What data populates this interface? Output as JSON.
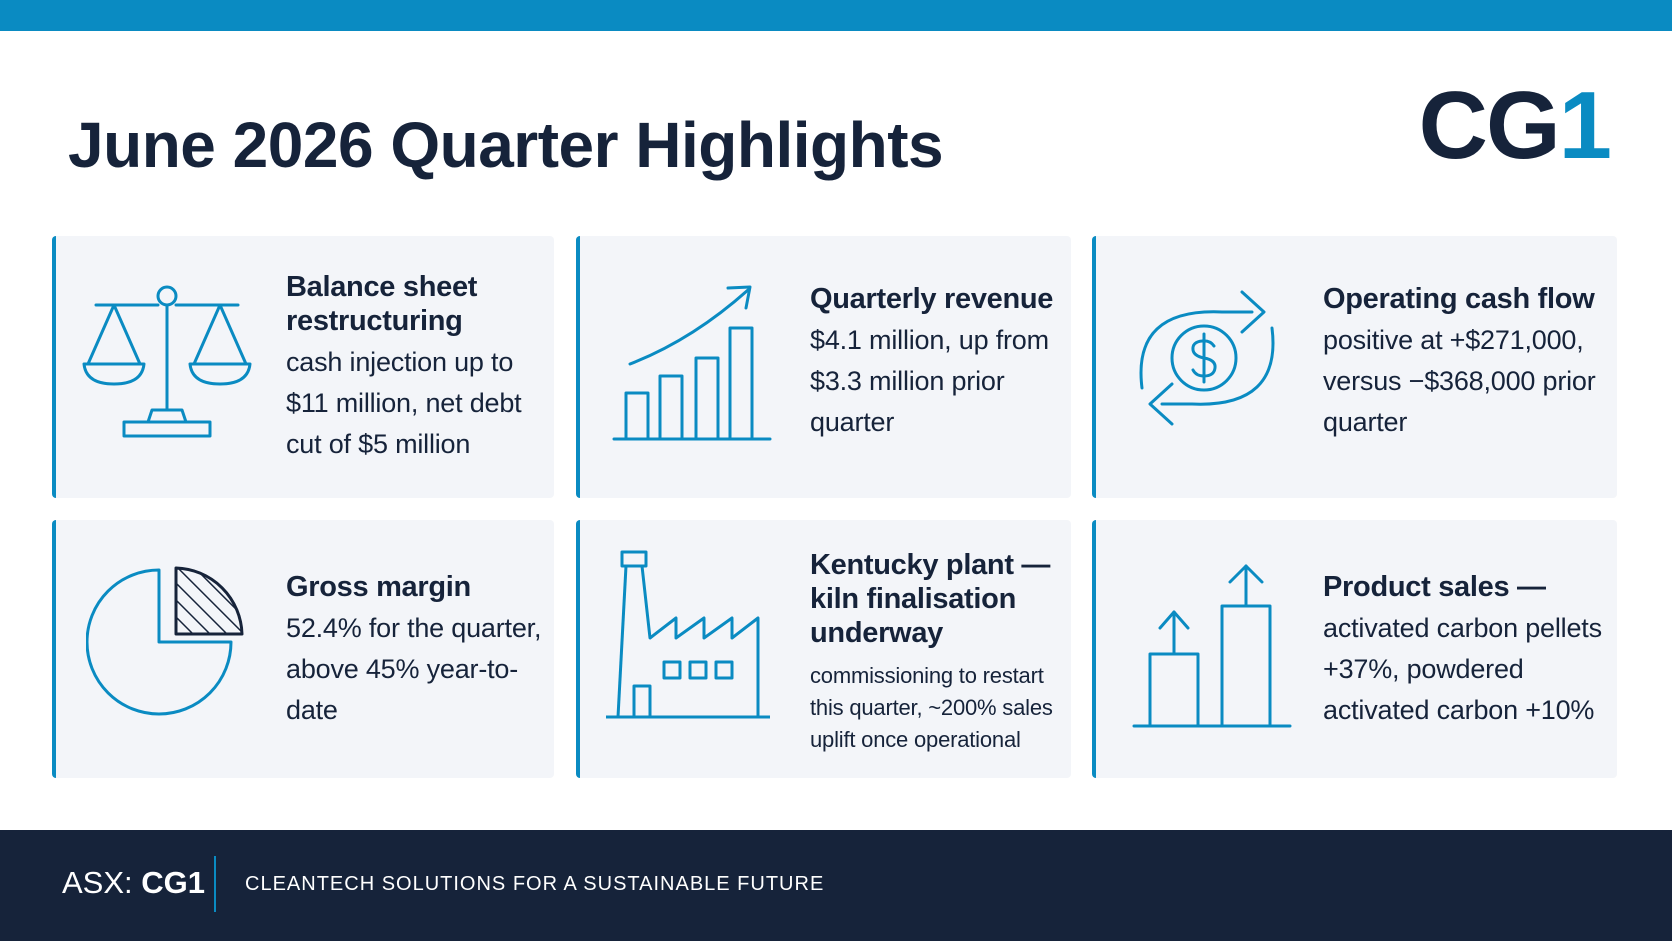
{
  "title": "June 2026 Quarter Highlights",
  "logo": {
    "main": "CG",
    "accent": "1"
  },
  "colors": {
    "accent": "#0a8bc2",
    "navy": "#16233a",
    "card_bg": "#f3f5f9",
    "background": "#ffffff"
  },
  "cards": [
    {
      "icon": "balance-scale-icon",
      "heading": "Balance sheet restructuring",
      "body": "cash injection up to $11 million, net debt cut of $5 million"
    },
    {
      "icon": "bar-chart-growth-icon",
      "heading": "Quarterly revenue",
      "body": "$4.1 million, up from $3.3 million prior quarter"
    },
    {
      "icon": "cash-flow-cycle-icon",
      "heading": "Operating cash flow",
      "body": "positive at +$271,000, versus −$368,000 prior quarter"
    },
    {
      "icon": "pie-chart-icon",
      "heading": "Gross margin",
      "body": "52.4% for the quarter, above 45% year-to-date"
    },
    {
      "icon": "factory-icon",
      "heading": "Kentucky plant — kiln finalisation underway",
      "body": "commissioning to restart this quarter, ~200% sales uplift once operational"
    },
    {
      "icon": "rising-bars-icon",
      "heading": "Product sales —",
      "body": "activated carbon pellets +37%, powdered activated carbon +10%"
    }
  ],
  "footer": {
    "exchange": "ASX:",
    "ticker": "CG1",
    "tagline": "CLEANTECH SOLUTIONS FOR A SUSTAINABLE FUTURE"
  }
}
